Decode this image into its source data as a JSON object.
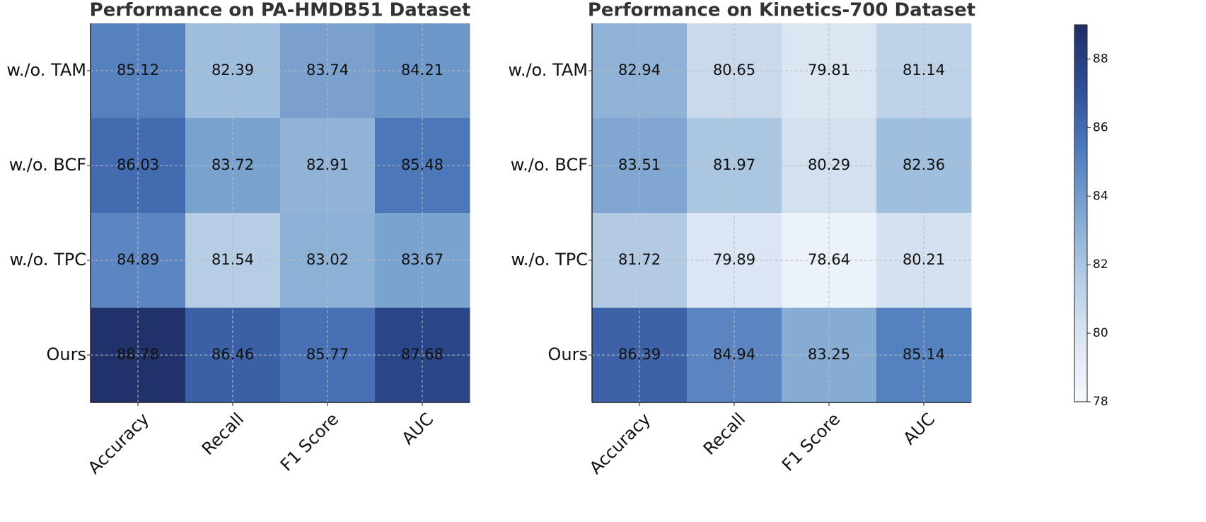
{
  "chart_data": [
    {
      "type": "heatmap",
      "title": "Performance on PA-HMDB51 Dataset",
      "columns": [
        "Accuracy",
        "Recall",
        "F1 Score",
        "AUC"
      ],
      "rows": [
        "w./o. TAM",
        "w./o. BCF",
        "w./o. TPC",
        "Ours"
      ],
      "values": [
        [
          85.12,
          82.39,
          83.74,
          84.21
        ],
        [
          86.03,
          83.72,
          82.91,
          85.48
        ],
        [
          84.89,
          81.54,
          83.02,
          83.67
        ],
        [
          88.78,
          86.46,
          85.77,
          87.68
        ]
      ],
      "grid": true
    },
    {
      "type": "heatmap",
      "title": "Performance on Kinetics-700 Dataset",
      "columns": [
        "Accuracy",
        "Recall",
        "F1 Score",
        "AUC"
      ],
      "rows": [
        "w./o. TAM",
        "w./o. BCF",
        "w./o. TPC",
        "Ours"
      ],
      "values": [
        [
          82.94,
          80.65,
          79.81,
          81.14
        ],
        [
          83.51,
          81.97,
          80.29,
          82.36
        ],
        [
          81.72,
          79.89,
          78.64,
          80.21
        ],
        [
          86.39,
          84.94,
          83.25,
          85.14
        ]
      ],
      "grid": true
    }
  ],
  "colorbar": {
    "zlim": [
      78,
      89
    ],
    "zticks": [
      78,
      80,
      82,
      84,
      86,
      88
    ],
    "colormap": [
      "#f5f8fd",
      "#dce6f3",
      "#b3cce4",
      "#80a7d1",
      "#4f7cbd",
      "#2f4f98",
      "#1f2d64"
    ]
  }
}
